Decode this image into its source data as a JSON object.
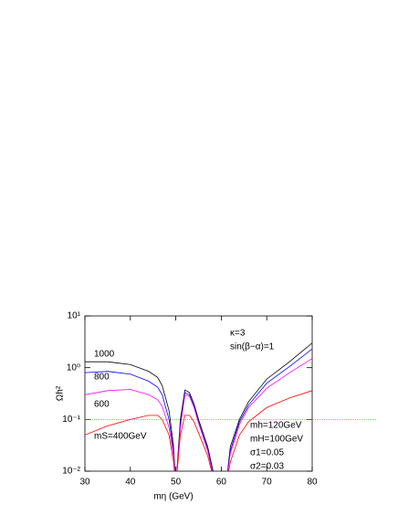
{
  "chart_data": {
    "type": "line",
    "x_label": "mη  (GeV)",
    "y_label": "Ωh²",
    "log_y": true,
    "x": [
      30,
      35,
      40,
      44,
      46,
      47,
      48.5,
      49.5,
      50,
      51,
      52,
      53,
      54,
      55,
      57,
      58,
      59,
      61,
      62,
      64,
      66,
      70,
      75,
      80
    ],
    "series": [
      {
        "name": "1000",
        "color": "#000000",
        "values": [
          1.3,
          1.3,
          1.15,
          0.85,
          0.65,
          0.45,
          0.15,
          0.03,
          0.005,
          0.1,
          0.37,
          0.33,
          0.2,
          0.1,
          0.03,
          0.012,
          0.005,
          0.005,
          0.03,
          0.1,
          0.22,
          0.6,
          1.3,
          3.0
        ]
      },
      {
        "name": "800",
        "color": "#0000ff",
        "values": [
          0.8,
          0.85,
          0.75,
          0.55,
          0.42,
          0.3,
          0.1,
          0.025,
          0.005,
          0.08,
          0.33,
          0.3,
          0.18,
          0.09,
          0.027,
          0.011,
          0.005,
          0.005,
          0.025,
          0.09,
          0.19,
          0.5,
          1.05,
          2.3
        ]
      },
      {
        "name": "600",
        "color": "#ff00ff",
        "values": [
          0.3,
          0.36,
          0.38,
          0.3,
          0.24,
          0.18,
          0.07,
          0.02,
          0.005,
          0.07,
          0.3,
          0.28,
          0.17,
          0.085,
          0.025,
          0.01,
          0.005,
          0.005,
          0.022,
          0.08,
          0.17,
          0.4,
          0.8,
          1.5
        ]
      },
      {
        "name": "mS=400GeV",
        "color": "#ff0000",
        "values": [
          0.05,
          0.075,
          0.1,
          0.12,
          0.12,
          0.1,
          0.05,
          0.015,
          0.005,
          0.05,
          0.12,
          0.12,
          0.09,
          0.055,
          0.02,
          0.009,
          0.005,
          0.005,
          0.015,
          0.05,
          0.09,
          0.17,
          0.26,
          0.36
        ]
      }
    ],
    "reference_line": {
      "value": 0.1,
      "color": "#00c000"
    },
    "annotations": [
      "κ=3",
      "sin(β−α)=1",
      "mh=120GeV",
      "mH=100GeV",
      "σ1=0.05",
      "σ2=0.03"
    ],
    "xlim": [
      30,
      80
    ],
    "xticks": [
      30,
      40,
      50,
      60,
      70,
      80
    ],
    "ylim": [
      0.01,
      10
    ],
    "yticks": [
      {
        "value": 10,
        "label": "10¹"
      },
      {
        "value": 1,
        "label": "10⁰"
      },
      {
        "value": 0.1,
        "label": "10⁻¹"
      },
      {
        "value": 0.01,
        "label": "10⁻²"
      }
    ]
  }
}
